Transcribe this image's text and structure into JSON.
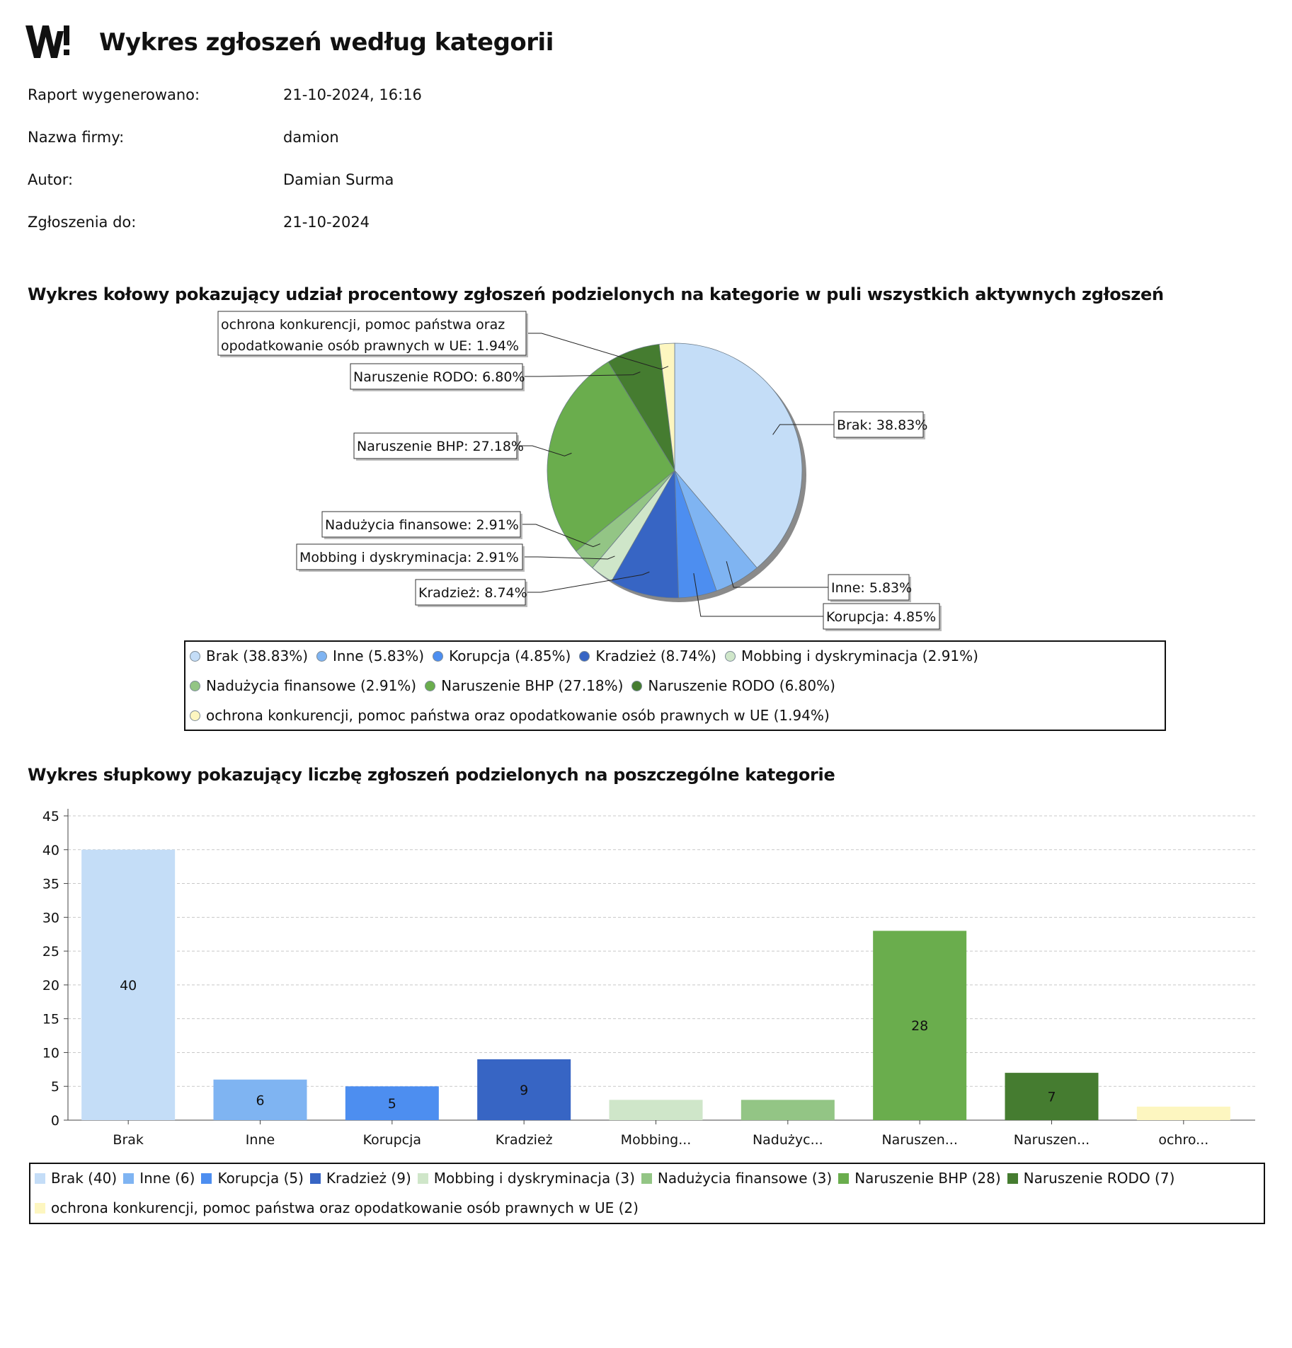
{
  "report": {
    "title": "Wykres zgłoszeń według kategorii",
    "meta": [
      {
        "label": "Raport wygenerowano:",
        "value": "21-10-2024, 16:16"
      },
      {
        "label": "Nazwa firmy:",
        "value": "damion"
      },
      {
        "label": "Autor:",
        "value": "Damian Surma"
      },
      {
        "label": "Zgłoszenia do:",
        "value": "21-10-2024"
      }
    ]
  },
  "colors": {
    "Brak": "#c4ddf7",
    "Inne": "#7fb4f2",
    "Korupcja": "#4d8ef0",
    "Kradzież": "#3765c4",
    "Mobbing": "#cfe6c9",
    "Nadużycia": "#93c585",
    "BHP": "#6aad4d",
    "RODO": "#457c30",
    "ochrona": "#fdf6c0"
  },
  "chart_data": [
    {
      "type": "pie",
      "title": "Wykres kołowy pokazujący udział procentowy zgłoszeń podzielonych na kategorie w puli wszystkich aktywnych zgłoszeń",
      "slices": [
        {
          "key": "Brak",
          "name": "Brak",
          "value": 38.83,
          "label": "Brak: 38.83%",
          "legend": "Brak (38.83%)"
        },
        {
          "key": "Inne",
          "name": "Inne",
          "value": 5.83,
          "label": "Inne: 5.83%",
          "legend": "Inne (5.83%)"
        },
        {
          "key": "Korupcja",
          "name": "Korupcja",
          "value": 4.85,
          "label": "Korupcja: 4.85%",
          "legend": "Korupcja (4.85%)"
        },
        {
          "key": "Kradzież",
          "name": "Kradzież",
          "value": 8.74,
          "label": "Kradzież: 8.74%",
          "legend": "Kradzież (8.74%)"
        },
        {
          "key": "Mobbing",
          "name": "Mobbing i dyskryminacja",
          "value": 2.91,
          "label": "Mobbing i dyskryminacja: 2.91%",
          "legend": "Mobbing i dyskryminacja (2.91%)"
        },
        {
          "key": "Nadużycia",
          "name": "Nadużycia finansowe",
          "value": 2.91,
          "label": "Nadużycia finansowe: 2.91%",
          "legend": "Nadużycia finansowe (2.91%)"
        },
        {
          "key": "BHP",
          "name": "Naruszenie BHP",
          "value": 27.18,
          "label": "Naruszenie BHP: 27.18%",
          "legend": "Naruszenie BHP (27.18%)"
        },
        {
          "key": "RODO",
          "name": "Naruszenie RODO",
          "value": 6.8,
          "label": "Naruszenie RODO: 6.80%",
          "legend": "Naruszenie RODO (6.80%)"
        },
        {
          "key": "ochrona",
          "name": "ochrona konkurencji, pomoc państwa oraz opodatkowanie osób prawnych w UE",
          "value": 1.94,
          "label": "ochrona konkurencji, pomoc państwa oraz|opodatkowanie osób prawnych w UE: 1.94%",
          "legend": "ochrona konkurencji, pomoc państwa oraz opodatkowanie osób prawnych w UE (1.94%)"
        }
      ]
    },
    {
      "type": "bar",
      "title": "Wykres słupkowy pokazujący liczbę zgłoszeń podzielonych na poszczególne kategorie",
      "ylim": [
        0,
        45
      ],
      "yticks": [
        0,
        5,
        10,
        15,
        20,
        25,
        30,
        35,
        40,
        45
      ],
      "grid": true,
      "bars": [
        {
          "key": "Brak",
          "tick": "Brak",
          "value": 40,
          "data_label": "40",
          "legend": "Brak (40)"
        },
        {
          "key": "Inne",
          "tick": "Inne",
          "value": 6,
          "data_label": "6",
          "legend": "Inne (6)"
        },
        {
          "key": "Korupcja",
          "tick": "Korupcja",
          "value": 5,
          "data_label": "5",
          "legend": "Korupcja (5)"
        },
        {
          "key": "Kradzież",
          "tick": "Kradzież",
          "value": 9,
          "data_label": "9",
          "legend": "Kradzież (9)"
        },
        {
          "key": "Mobbing",
          "tick": "Mobbing...",
          "value": 3,
          "data_label": "",
          "legend": "Mobbing i dyskryminacja (3)"
        },
        {
          "key": "Nadużycia",
          "tick": "Nadużyc...",
          "value": 3,
          "data_label": "",
          "legend": "Nadużycia finansowe (3)"
        },
        {
          "key": "BHP",
          "tick": "Naruszen...",
          "value": 28,
          "data_label": "28",
          "legend": "Naruszenie BHP (28)"
        },
        {
          "key": "RODO",
          "tick": "Naruszen...",
          "value": 7,
          "data_label": "7",
          "legend": "Naruszenie RODO (7)"
        },
        {
          "key": "ochrona",
          "tick": "ochro...",
          "value": 2,
          "data_label": "",
          "legend": "ochrona konkurencji, pomoc państwa oraz opodatkowanie osób prawnych w UE (2)"
        }
      ]
    }
  ]
}
